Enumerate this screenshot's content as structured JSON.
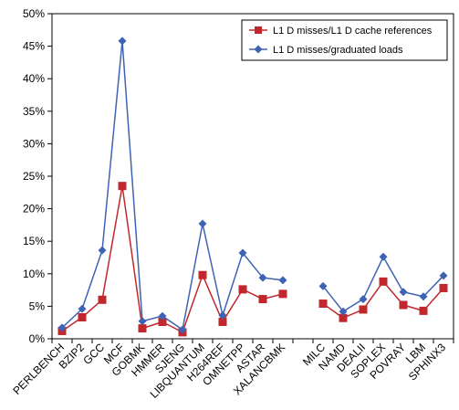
{
  "chart_data": {
    "type": "line",
    "title": "",
    "xlabel": "",
    "ylabel": "",
    "ylim": [
      0,
      50
    ],
    "y_tick_labels": [
      "0%",
      "5%",
      "10%",
      "15%",
      "20%",
      "25%",
      "30%",
      "35%",
      "40%",
      "45%",
      "50%"
    ],
    "y_tick_values": [
      0,
      5,
      10,
      15,
      20,
      25,
      30,
      35,
      40,
      45,
      50
    ],
    "grid": false,
    "legend": "top-right",
    "categories": [
      "PERLBENCH",
      "BZIP2",
      "GCC",
      "MCF",
      "GOBMK",
      "HMMER",
      "SJENG",
      "LIBQUANTUM",
      "H264REF",
      "OMNETPP",
      "ASTAR",
      "XALANCBMK",
      "",
      "MILC",
      "NAMD",
      "DEALII",
      "SOPLEX",
      "POVRAY",
      "LBM",
      "SPHINX3"
    ],
    "series": [
      {
        "name": "L1 D misses/L1 D cache references",
        "marker": "square",
        "color": "#c0282e",
        "values": [
          1.2,
          3.3,
          6.0,
          23.5,
          1.6,
          2.6,
          1.0,
          9.8,
          2.6,
          7.6,
          6.1,
          6.9,
          null,
          5.4,
          3.2,
          4.5,
          8.8,
          5.2,
          4.3,
          7.8
        ]
      },
      {
        "name": "L1 D misses/graduated loads",
        "marker": "diamond",
        "color": "#3f63b4",
        "values": [
          1.7,
          4.6,
          13.6,
          45.8,
          2.7,
          3.5,
          1.4,
          17.7,
          3.6,
          13.2,
          9.4,
          9.0,
          null,
          8.1,
          4.2,
          6.1,
          12.6,
          7.2,
          6.5,
          9.7
        ]
      }
    ]
  }
}
